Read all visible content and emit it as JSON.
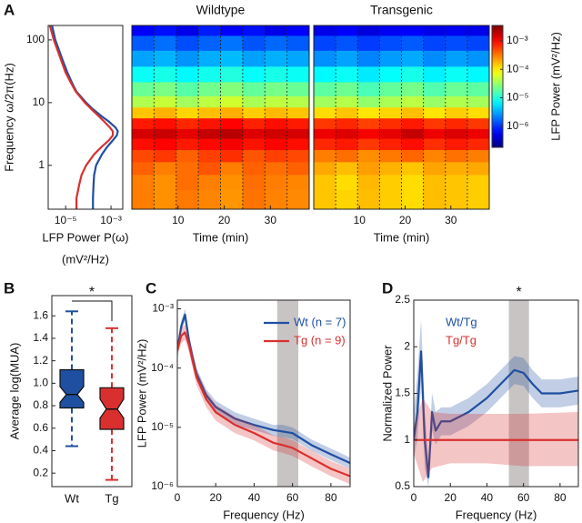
{
  "chart_data": [
    {
      "type": "line",
      "panel": "A",
      "value_axis": "x",
      "xlabel": "LFP Power P(ω)",
      "xlabel_units": "(mV²/Hz)",
      "ylabel": "Frequency ω/2π(Hz)",
      "xlog": true,
      "ylog": true,
      "xlim": [
        1.7e-06,
        0.0033
      ],
      "ylim": [
        0.2,
        170
      ],
      "xticks": [
        {
          "value": 1e-05,
          "label": "10⁻⁵"
        },
        {
          "value": 0.001,
          "label": "10⁻³"
        }
      ],
      "yticks": [
        1,
        10,
        100
      ],
      "y": [
        170,
        100,
        50,
        30,
        20,
        15,
        10,
        8,
        6,
        5,
        4,
        3.5,
        3,
        2.5,
        2,
        1.5,
        1,
        0.7,
        0.5,
        0.3,
        0.2
      ],
      "series": [
        {
          "color": "#1f4fa0",
          "values": [
            2.5e-06,
            3.5e-06,
            7e-06,
            1.2e-05,
            2e-05,
            3e-05,
            8e-05,
            0.00015,
            0.0004,
            0.0008,
            0.0016,
            0.002,
            0.0018,
            0.0012,
            0.0007,
            0.0004,
            0.00022,
            0.00018,
            0.00017,
            0.00016,
            0.00016
          ]
        },
        {
          "color": "#d9302f",
          "values": [
            2e-06,
            3e-06,
            6e-06,
            1e-05,
            1.8e-05,
            2.8e-05,
            7e-05,
            0.00013,
            0.0003,
            0.0005,
            0.0009,
            0.0012,
            0.0012,
            0.0008,
            0.0004,
            0.00018,
            8e-05,
            5e-05,
            4e-05,
            3e-05,
            3e-05
          ]
        }
      ]
    },
    {
      "type": "heatmap",
      "title": "Wildtype",
      "xlabel": "Time (min)",
      "colormap": "jet",
      "ylog": true,
      "xlim": [
        0,
        38.4
      ],
      "ylim": [
        0.2,
        170
      ],
      "xticks": [
        10,
        20,
        30
      ],
      "x": [
        2.4,
        7.2,
        12,
        16.8,
        21.6,
        26.4,
        31.2,
        36
      ],
      "y": [
        150,
        90,
        50,
        28,
        16,
        10,
        7,
        4.5,
        3.2,
        2.2,
        1.4,
        0.9,
        0.55,
        0.3
      ],
      "values": [
        [
          6e-07,
          7e-07,
          5e-07,
          8e-07,
          6e-07,
          7e-07,
          5e-07,
          6e-07
        ],
        [
          1.5e-06,
          1.8e-06,
          1.3e-06,
          1.6e-06,
          1.9e-06,
          1.4e-06,
          1.7e-06,
          1.5e-06
        ],
        [
          3e-06,
          3.5e-06,
          2.6e-06,
          3.3e-06,
          3.8e-06,
          2.9e-06,
          3.4e-06,
          3.1e-06
        ],
        [
          8e-06,
          9e-06,
          7e-06,
          8.5e-06,
          1e-05,
          7.5e-06,
          9e-06,
          8e-06
        ],
        [
          2e-05,
          2.4e-05,
          1.7e-05,
          2.2e-05,
          2.6e-05,
          1.9e-05,
          2.3e-05,
          2e-05
        ],
        [
          4e-05,
          5e-05,
          3.5e-05,
          4.5e-05,
          5.5e-05,
          3.8e-05,
          4.6e-05,
          4.2e-05
        ],
        [
          0.00015,
          0.00018,
          0.00013,
          0.00016,
          0.00019,
          0.00014,
          0.00017,
          0.00015
        ],
        [
          0.0008,
          0.0009,
          0.0007,
          0.00085,
          0.001,
          0.00075,
          0.0009,
          0.0008
        ],
        [
          0.0015,
          0.0017,
          0.0013,
          0.0018,
          0.002,
          0.0014,
          0.0016,
          0.0015
        ],
        [
          0.0009,
          0.001,
          0.0008,
          0.00095,
          0.0011,
          0.00085,
          0.001,
          0.0009
        ],
        [
          0.0005,
          0.0006,
          0.0004,
          0.00055,
          0.00065,
          0.00045,
          0.00055,
          0.0005
        ],
        [
          0.0004,
          0.0003,
          0.00035,
          0.00045,
          0.0003,
          0.0004,
          0.00035,
          0.0004
        ],
        [
          0.0003,
          0.00025,
          0.00035,
          0.0003,
          0.00025,
          0.00035,
          0.0003,
          0.00028
        ],
        [
          0.0003,
          0.00025,
          0.00032,
          0.00028,
          0.00024,
          0.00033,
          0.00029,
          0.00027
        ]
      ]
    },
    {
      "type": "heatmap",
      "title": "Transgenic",
      "xlabel": "Time (min)",
      "colormap": "jet",
      "ylog": true,
      "xlim": [
        0,
        38.4
      ],
      "ylim": [
        0.2,
        170
      ],
      "xticks": [
        10,
        20,
        30
      ],
      "x": [
        2.4,
        7.2,
        12,
        16.8,
        21.6,
        26.4,
        31.2,
        36
      ],
      "y": [
        150,
        90,
        50,
        28,
        16,
        10,
        7,
        4.5,
        3.2,
        2.2,
        1.4,
        0.9,
        0.55,
        0.3
      ],
      "values": [
        [
          5e-07,
          6e-07,
          4.5e-07,
          5.5e-07,
          6e-07,
          5e-07,
          5.5e-07,
          5e-07
        ],
        [
          1.2e-06,
          1.4e-06,
          1.1e-06,
          1.3e-06,
          1.5e-06,
          1.2e-06,
          1.3e-06,
          1.2e-06
        ],
        [
          2.5e-06,
          3e-06,
          2.2e-06,
          2.8e-06,
          3.2e-06,
          2.4e-06,
          2.9e-06,
          2.6e-06
        ],
        [
          7e-06,
          8e-06,
          6e-06,
          7.5e-06,
          9e-06,
          6.5e-06,
          8e-06,
          7e-06
        ],
        [
          1.8e-05,
          2.1e-05,
          1.5e-05,
          1.9e-05,
          2.3e-05,
          1.6e-05,
          2e-05,
          1.8e-05
        ],
        [
          3.5e-05,
          4.2e-05,
          3e-05,
          3.8e-05,
          4.5e-05,
          3.2e-05,
          4e-05,
          3.6e-05
        ],
        [
          0.00012,
          0.00015,
          0.00011,
          0.00013,
          0.00016,
          0.00011,
          0.00014,
          0.00012
        ],
        [
          0.0006,
          0.0007,
          0.00055,
          0.00065,
          0.0008,
          0.0006,
          0.0007,
          0.0006
        ],
        [
          0.0012,
          0.0014,
          0.0011,
          0.0013,
          0.0018,
          0.0012,
          0.0014,
          0.0012
        ],
        [
          0.0007,
          0.0008,
          0.0006,
          0.00075,
          0.0009,
          0.00065,
          0.0008,
          0.0007
        ],
        [
          0.0003,
          0.00035,
          0.00026,
          0.00032,
          0.00038,
          0.00028,
          0.00034,
          0.0003
        ],
        [
          0.0002,
          0.00016,
          0.00022,
          0.00018,
          0.00015,
          0.00021,
          0.00019,
          0.0002
        ],
        [
          0.00015,
          0.00012,
          0.00017,
          0.00014,
          0.00012,
          0.00016,
          0.00015,
          0.00014
        ],
        [
          0.00015,
          0.00013,
          0.00016,
          0.00014,
          0.00012,
          0.00016,
          0.00015,
          0.00014
        ]
      ],
      "colorbar": {
        "label": "LFP Power (mV²/Hz)",
        "log": true,
        "lim": [
          1.8e-07,
          0.0035
        ],
        "ticks": [
          {
            "value": 0.001,
            "label": "10⁻³"
          },
          {
            "value": 0.0001,
            "label": "10⁻⁴"
          },
          {
            "value": 1e-05,
            "label": "10⁻⁵"
          },
          {
            "value": 1e-06,
            "label": "10⁻⁶"
          }
        ]
      }
    },
    {
      "type": "box",
      "panel": "B",
      "ylabel": "Average log(MUA)",
      "annotation": "*",
      "ylim": [
        0.08,
        1.78
      ],
      "yticks": [
        0.2,
        0.4,
        0.6,
        0.8,
        {
          "value": 1,
          "label": "1.0"
        },
        1.2,
        1.4,
        1.6
      ],
      "categories": [
        "Wt",
        "Tg"
      ],
      "boxes": [
        {
          "color": "#1f4fa0",
          "whislo": 0.44,
          "q1": 0.78,
          "notch_low": 0.83,
          "med": 0.9,
          "notch_high": 0.97,
          "q3": 1.12,
          "whishi": 1.64
        },
        {
          "color": "#d9302f",
          "whislo": 0.14,
          "q1": 0.59,
          "notch_low": 0.69,
          "med": 0.77,
          "notch_high": 0.86,
          "q3": 0.96,
          "whishi": 1.49
        }
      ]
    },
    {
      "type": "line",
      "panel": "C",
      "xlabel": "Frequency (Hz)",
      "ylabel": "LFP Power (mV²/Hz)",
      "ylog": true,
      "xlim": [
        0,
        90
      ],
      "ylim": [
        1e-06,
        0.0014
      ],
      "xticks": [
        0,
        20,
        40,
        60,
        80
      ],
      "yticks": [
        {
          "value": 1e-06,
          "label": "10⁻⁶"
        },
        {
          "value": 1e-05,
          "label": "10⁻⁵"
        },
        {
          "value": 0.0001,
          "label": "10⁻⁴"
        },
        {
          "value": 0.001,
          "label": "10⁻³"
        }
      ],
      "highlight": [
        52,
        63
      ],
      "legend": "upper right",
      "legend_marker": "line",
      "x": [
        0,
        2,
        4,
        6,
        8,
        10,
        15,
        20,
        30,
        40,
        50,
        55,
        60,
        70,
        80,
        90
      ],
      "series": [
        {
          "name": "Wt (n = 7)",
          "color": "#1f4fa0",
          "values": [
            0.0002,
            0.0005,
            0.0008,
            0.0003,
            0.00015,
            8e-05,
            3.5e-05,
            2.2e-05,
            1.4e-05,
            1.1e-05,
            9e-06,
            8.5e-06,
            8e-06,
            5e-06,
            3.5e-06,
            2.5e-06
          ],
          "lower": [
            0.00016,
            0.0004,
            0.00064,
            0.00024,
            0.00012,
            6.4e-05,
            2.8e-05,
            1.8e-05,
            1.1e-05,
            9e-06,
            7.2e-06,
            6.8e-06,
            6.4e-06,
            4e-06,
            2.8e-06,
            2e-06
          ],
          "upper": [
            0.00025,
            0.00062,
            0.001,
            0.00038,
            0.00019,
            0.0001,
            4.4e-05,
            2.8e-05,
            1.8e-05,
            1.4e-05,
            1.1e-05,
            1.1e-05,
            1e-05,
            6.2e-06,
            4.4e-06,
            3.1e-06
          ]
        },
        {
          "name": "Tg (n = 9)",
          "color": "#d9302f",
          "values": [
            0.0002,
            0.00035,
            0.0004,
            0.00025,
            0.00013,
            7e-05,
            3e-05,
            1.8e-05,
            1.1e-05,
            8e-06,
            5.5e-06,
            5e-06,
            4.5e-06,
            3e-06,
            2e-06,
            1.5e-06
          ],
          "lower": [
            0.00015,
            0.00026,
            0.0003,
            0.00019,
            0.0001,
            5.2e-05,
            2.2e-05,
            1.3e-05,
            8e-06,
            6e-06,
            4.1e-06,
            3.7e-06,
            3.3e-06,
            2.2e-06,
            1.5e-06,
            1.1e-06
          ],
          "upper": [
            0.00027,
            0.00047,
            0.00054,
            0.00034,
            0.00018,
            9.5e-05,
            4e-05,
            2.4e-05,
            1.5e-05,
            1.1e-05,
            7.4e-06,
            6.8e-06,
            6.1e-06,
            4e-06,
            2.7e-06,
            2e-06
          ]
        }
      ]
    },
    {
      "type": "line",
      "panel": "D",
      "xlabel": "Frequency (Hz)",
      "ylabel": "Normalized Power",
      "annotation": "*",
      "xlim": [
        0,
        90
      ],
      "ylim": [
        0.5,
        2.5
      ],
      "xticks": [
        0,
        20,
        40,
        60,
        80
      ],
      "yticks": [
        0.5,
        1,
        1.5,
        2,
        2.5
      ],
      "highlight": [
        52,
        63
      ],
      "legend": "upper left",
      "legend_marker": "none",
      "series": [
        {
          "name": "Wt/Tg",
          "color": "#1f4fa0",
          "x": [
            0,
            2,
            4,
            6,
            8,
            10,
            12,
            15,
            20,
            30,
            40,
            50,
            55,
            60,
            65,
            70,
            80,
            90
          ],
          "values": [
            1.0,
            1.3,
            1.95,
            1.0,
            0.6,
            1.3,
            1.1,
            1.2,
            1.2,
            1.3,
            1.45,
            1.65,
            1.75,
            1.72,
            1.6,
            1.5,
            1.5,
            1.53
          ],
          "lower": [
            0.8,
            1.0,
            1.6,
            0.7,
            0.5,
            1.1,
            0.95,
            1.05,
            1.05,
            1.15,
            1.3,
            1.5,
            1.6,
            1.58,
            1.45,
            1.35,
            1.35,
            1.38
          ],
          "upper": [
            1.3,
            1.7,
            2.3,
            1.3,
            0.8,
            1.5,
            1.3,
            1.35,
            1.35,
            1.45,
            1.6,
            1.8,
            1.9,
            1.88,
            1.75,
            1.65,
            1.65,
            1.68
          ]
        },
        {
          "name": "Tg/Tg",
          "color": "#d9302f",
          "x": [
            0,
            5,
            10,
            20,
            40,
            60,
            90
          ],
          "values": [
            1,
            1,
            1,
            1,
            1,
            1,
            1
          ],
          "lower": [
            0.85,
            0.55,
            0.7,
            0.75,
            0.75,
            0.72,
            0.72
          ],
          "upper": [
            1.15,
            1.45,
            1.3,
            1.28,
            1.28,
            1.28,
            1.3
          ]
        }
      ]
    }
  ]
}
